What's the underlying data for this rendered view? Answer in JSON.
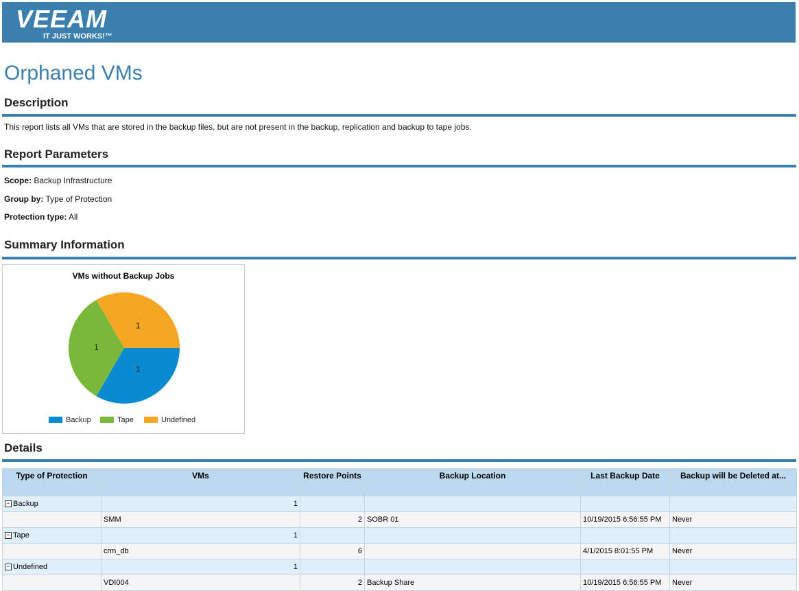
{
  "header": {
    "logo": "VEEAM",
    "tagline": "IT JUST WORKS!™"
  },
  "title": "Orphaned VMs",
  "description": {
    "heading": "Description",
    "text": "This report lists all VMs that are stored in the backup files, but are not present in the backup, replication and backup to tape jobs."
  },
  "parameters": {
    "heading": "Report Parameters",
    "items": [
      {
        "label": "Scope:",
        "value": "Backup Infrastructure"
      },
      {
        "label": "Group by:",
        "value": "Type of Protection"
      },
      {
        "label": "Protection type:",
        "value": "All"
      }
    ]
  },
  "summary": {
    "heading": "Summary Information"
  },
  "chart_data": {
    "type": "pie",
    "title": "VMs without Backup Jobs",
    "categories": [
      "Backup",
      "Tape",
      "Undefined"
    ],
    "values": [
      1,
      1,
      1
    ],
    "colors": [
      "#0a8bd1",
      "#7ab83b",
      "#f5a623"
    ]
  },
  "details": {
    "heading": "Details",
    "columns": [
      "Type of Protection",
      "VMs",
      "Restore Points",
      "Backup Location",
      "Last Backup Date",
      "Backup will be Deleted at..."
    ],
    "groups": [
      {
        "name": "Backup",
        "count": 1,
        "items": [
          {
            "vm": "SMM",
            "restore_points": 2,
            "location": "SOBR 01",
            "last_backup": "10/19/2015 6:56:55 PM",
            "deleted_at": "Never"
          }
        ]
      },
      {
        "name": "Tape",
        "count": 1,
        "items": [
          {
            "vm": "crm_db",
            "restore_points": 6,
            "last_backup": "4/1/2015 8:01:55 PM",
            "deleted_at": "Never"
          }
        ]
      },
      {
        "name": "Undefined",
        "count": 1,
        "items": [
          {
            "vm": "VDI004",
            "restore_points": 2,
            "location": "Backup Share",
            "last_backup": "10/19/2015 6:56:55 PM",
            "deleted_at": "Never"
          }
        ]
      }
    ]
  }
}
